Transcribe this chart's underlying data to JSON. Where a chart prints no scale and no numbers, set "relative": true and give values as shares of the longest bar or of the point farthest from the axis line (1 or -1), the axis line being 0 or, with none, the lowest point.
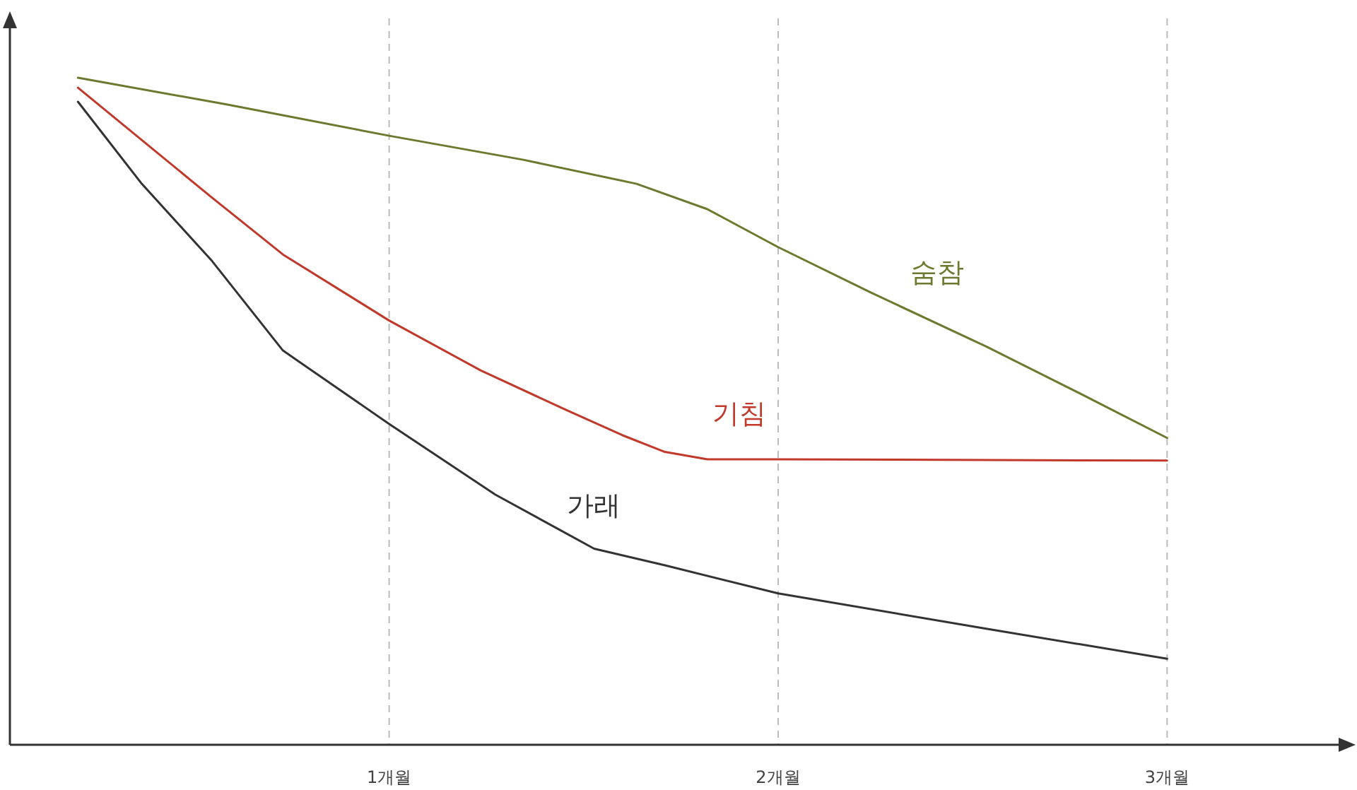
{
  "chart_data": {
    "type": "line",
    "relative": true,
    "xlim": [
      0.025,
      3.47
    ],
    "xticks": [
      {
        "value": 1,
        "label": "1개월"
      },
      {
        "value": 2,
        "label": "2개월"
      },
      {
        "value": 3,
        "label": "3개월"
      }
    ],
    "grid": "x",
    "marker": "none",
    "line_style": "solid",
    "tick_labels": "x",
    "series": [
      {
        "name": "숨참",
        "color": "#6b7a2e",
        "x": [
          0.2,
          0.582,
          1,
          1.345,
          1.636,
          1.818,
          2,
          2.238,
          2.535,
          2.758,
          3
        ],
        "values": [
          1,
          0.96,
          0.913,
          0.877,
          0.841,
          0.803,
          0.746,
          0.678,
          0.597,
          0.532,
          0.46
        ]
      },
      {
        "name": "기침",
        "color": "#c0392b",
        "x": [
          0.2,
          0.545,
          0.727,
          1,
          1.236,
          1.455,
          1.6,
          1.709,
          1.818,
          2,
          3
        ],
        "values": [
          0.985,
          0.82,
          0.735,
          0.636,
          0.561,
          0.502,
          0.464,
          0.439,
          0.428,
          0.428,
          0.426
        ]
      },
      {
        "name": "가래",
        "color": "#333333",
        "x": [
          0.2,
          0.364,
          0.545,
          0.727,
          1,
          1.273,
          1.527,
          1.709,
          2,
          2.535,
          3
        ],
        "values": [
          0.964,
          0.841,
          0.725,
          0.591,
          0.481,
          0.375,
          0.294,
          0.269,
          0.227,
          0.174,
          0.129
        ]
      }
    ]
  }
}
